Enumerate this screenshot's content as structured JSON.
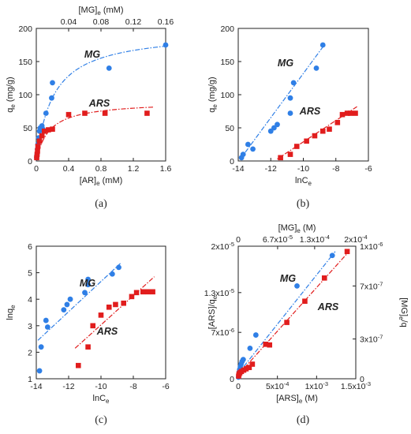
{
  "colors": {
    "mg": "#2f7fe6",
    "ars": "#e11d1d",
    "axis": "#222222"
  },
  "chart_data": [
    {
      "panel": "a",
      "type": "scatter",
      "caption": "(a)",
      "xlabel": "[AR]",
      "xlabel_sub": "e",
      "xlabel_unit": " (mM)",
      "ylabel": "q",
      "ylabel_sub": "e",
      "ylabel_unit": " (mg/g)",
      "xlim": [
        0,
        1.6
      ],
      "ylim": [
        0,
        200
      ],
      "xticks": [
        0,
        0.4,
        0.8,
        1.2,
        1.6
      ],
      "xtick_labels": [
        "0",
        "0.4",
        "0.8",
        "1.2",
        "1.6"
      ],
      "yticks": [
        0,
        50,
        100,
        150,
        200
      ],
      "ytick_labels": [
        "0",
        "50",
        "100",
        "150",
        "200"
      ],
      "top_axis": {
        "label": "[MG]",
        "label_sub": "e",
        "label_unit": " (mM)",
        "lim": [
          0,
          0.16
        ],
        "ticks": [
          0.04,
          0.08,
          0.12,
          0.16
        ],
        "tick_labels": [
          "0.04",
          "0.08",
          "0.12",
          "0.16"
        ]
      },
      "series": [
        {
          "name": "MG",
          "marker": "circle",
          "axis": "top",
          "x": [
            0.0005,
            0.001,
            0.0015,
            0.002,
            0.003,
            0.004,
            0.005,
            0.007,
            0.008,
            0.012,
            0.019,
            0.02,
            0.09,
            0.16
          ],
          "y": [
            5,
            10,
            18,
            25,
            35,
            45,
            50,
            53,
            48,
            72,
            95,
            118,
            140,
            175
          ],
          "fit": {
            "kind": "langmuir",
            "qmax": 196,
            "k": 47.5,
            "x_from": 0.0003,
            "x_to": 0.16
          }
        },
        {
          "name": "ARS",
          "marker": "square",
          "axis": "bottom",
          "x": [
            0.005,
            0.01,
            0.015,
            0.02,
            0.04,
            0.07,
            0.1,
            0.15,
            0.2,
            0.4,
            0.6,
            0.85,
            1.37
          ],
          "y": [
            5,
            10,
            15,
            22,
            30,
            38,
            45,
            47,
            48,
            70,
            72,
            72,
            72
          ],
          "fit": {
            "kind": "langmuir",
            "qmax": 90,
            "k": 6.4,
            "x_from": 0.003,
            "x_to": 1.45
          }
        }
      ]
    },
    {
      "panel": "b",
      "type": "scatter",
      "caption": "(b)",
      "xlabel": "lnC",
      "xlabel_sub": "e",
      "xlabel_unit": "",
      "ylabel": "q",
      "ylabel_sub": "e",
      "ylabel_unit": " (mg/g)",
      "xlim": [
        -14,
        -6
      ],
      "ylim": [
        0,
        200
      ],
      "xticks": [
        -14,
        -12,
        -10,
        -8,
        -6
      ],
      "xtick_labels": [
        "-14",
        "-12",
        "-10",
        "-8",
        "-6"
      ],
      "yticks": [
        0,
        50,
        100,
        150,
        200
      ],
      "ytick_labels": [
        "0",
        "50",
        "100",
        "150",
        "200"
      ],
      "series": [
        {
          "name": "MG",
          "marker": "circle",
          "x": [
            -13.8,
            -13.7,
            -13.4,
            -13.1,
            -12.0,
            -11.8,
            -11.6,
            -10.8,
            -10.8,
            -10.6,
            -9.2,
            -8.8
          ],
          "y": [
            5,
            10,
            25,
            18,
            45,
            50,
            55,
            72,
            95,
            118,
            140,
            175
          ],
          "fit": {
            "x_from": -13.9,
            "x_to": -8.8,
            "y_from": 2,
            "y_to": 172
          }
        },
        {
          "name": "ARS",
          "marker": "square",
          "x": [
            -11.4,
            -10.8,
            -10.4,
            -9.8,
            -9.3,
            -8.8,
            -8.4,
            -7.9,
            -7.6,
            -7.3,
            -7.1,
            -6.8
          ],
          "y": [
            5,
            10,
            22,
            30,
            38,
            45,
            48,
            58,
            70,
            72,
            72,
            72
          ],
          "fit": {
            "x_from": -11.6,
            "x_to": -6.7,
            "y_from": 3,
            "y_to": 82
          }
        }
      ]
    },
    {
      "panel": "c",
      "type": "scatter",
      "caption": "(c)",
      "xlabel": "lnC",
      "xlabel_sub": "e",
      "xlabel_unit": "",
      "ylabel": "lnq",
      "ylabel_sub": "e",
      "ylabel_unit": "",
      "xlim": [
        -14,
        -6
      ],
      "ylim": [
        1,
        6
      ],
      "xticks": [
        -14,
        -12,
        -10,
        -8,
        -6
      ],
      "xtick_labels": [
        "-14",
        "-12",
        "-10",
        "-8",
        "-6"
      ],
      "yticks": [
        1,
        2,
        3,
        4,
        5,
        6
      ],
      "ytick_labels": [
        "1",
        "2",
        "3",
        "4",
        "5",
        "6"
      ],
      "series": [
        {
          "name": "MG",
          "marker": "circle",
          "x": [
            -13.8,
            -13.7,
            -13.4,
            -13.3,
            -12.3,
            -12.1,
            -11.9,
            -11.0,
            -10.8,
            -10.8,
            -9.3,
            -8.9
          ],
          "y": [
            1.3,
            2.2,
            3.2,
            2.95,
            3.6,
            3.8,
            4.0,
            4.25,
            4.55,
            4.75,
            4.95,
            5.2
          ],
          "fit": {
            "x_from": -13.9,
            "x_to": -8.8,
            "y_from": 2.45,
            "y_to": 5.35
          }
        },
        {
          "name": "ARS",
          "marker": "square",
          "x": [
            -11.4,
            -10.8,
            -10.5,
            -10.0,
            -9.5,
            -9.1,
            -8.6,
            -8.1,
            -7.8,
            -7.4,
            -7.1,
            -6.8
          ],
          "y": [
            1.5,
            2.2,
            3.0,
            3.4,
            3.7,
            3.8,
            3.85,
            4.1,
            4.25,
            4.28,
            4.28,
            4.28
          ],
          "fit": {
            "x_from": -11.6,
            "x_to": -6.7,
            "y_from": 2.15,
            "y_to": 4.85
          }
        }
      ]
    },
    {
      "panel": "d",
      "type": "scatter",
      "caption": "(d)",
      "xlabel": "[ARS]",
      "xlabel_sub": "e",
      "xlabel_unit": " (M)",
      "ylabel": "[ARS]/q",
      "ylabel_sub": "e",
      "ylabel_unit": "",
      "xlim": [
        0,
        0.0015
      ],
      "ylim": [
        0,
        2e-05
      ],
      "xticks": [
        0,
        0.0005,
        0.001,
        0.0015
      ],
      "xtick_labels": [
        "0",
        "5x10-4",
        "1x10-3",
        "1.5x10-3"
      ],
      "yticks": [
        0,
        7e-06,
        1.3e-05,
        2e-05
      ],
      "ytick_labels": [
        "0",
        "7x10-6",
        "1.3x10-5",
        "2x10-5"
      ],
      "top_axis": {
        "label": "[MG]",
        "label_sub": "e",
        "label_unit": " (M)",
        "lim": [
          0,
          0.0002
        ],
        "ticks": [
          0,
          6.7e-05,
          0.00013,
          0.0002
        ],
        "tick_labels": [
          "0",
          "6.7x10-5",
          "1.3x10-4",
          "2x10-4"
        ]
      },
      "right_axis": {
        "label": "[MG]",
        "label_sub": "e",
        "label_unit": "/q",
        "lim": [
          0,
          1e-06
        ],
        "ticks": [
          0,
          3e-07,
          7e-07,
          1e-06
        ],
        "tick_labels": [
          "0",
          "3x10-7",
          "7x10-7",
          "1x10-6"
        ]
      },
      "series": [
        {
          "name": "MG",
          "marker": "circle",
          "axis": "top-right",
          "x": [
            4e-07,
            9e-07,
            1.6e-06,
            2.4e-06,
            3.5e-06,
            4.8e-06,
            6.5e-06,
            8.5e-06,
            2e-05,
            3e-05,
            0.0001,
            0.00016
          ],
          "y": [
            1.2e-08,
            2.5e-08,
            5e-08,
            7e-08,
            9e-08,
            1.1e-07,
            1.3e-07,
            1.45e-07,
            2.3e-07,
            3.3e-07,
            7e-07,
            9.3e-07
          ],
          "fit": {
            "x_from": 0,
            "x_to": 0.000165,
            "y_from": 4e-08,
            "y_to": 9.6e-07
          }
        },
        {
          "name": "ARS",
          "marker": "square",
          "axis": "bottom-left",
          "x": [
            5e-06,
            1e-05,
            2e-05,
            4e-05,
            7e-05,
            0.0001,
            0.00014,
            0.00018,
            0.00035,
            0.0004,
            0.00062,
            0.00085,
            0.0011,
            0.00139
          ],
          "y": [
            4e-07,
            7e-07,
            9e-07,
            1.1e-06,
            1.3e-06,
            1.5e-06,
            1.7e-06,
            2.2e-06,
            5.2e-06,
            5.1e-06,
            8.5e-06,
            1.17e-05,
            1.52e-05,
            1.92e-05
          ],
          "fit": {
            "x_from": 0,
            "x_to": 0.00139,
            "y_from": 6e-07,
            "y_to": 1.89e-05
          }
        }
      ]
    }
  ]
}
